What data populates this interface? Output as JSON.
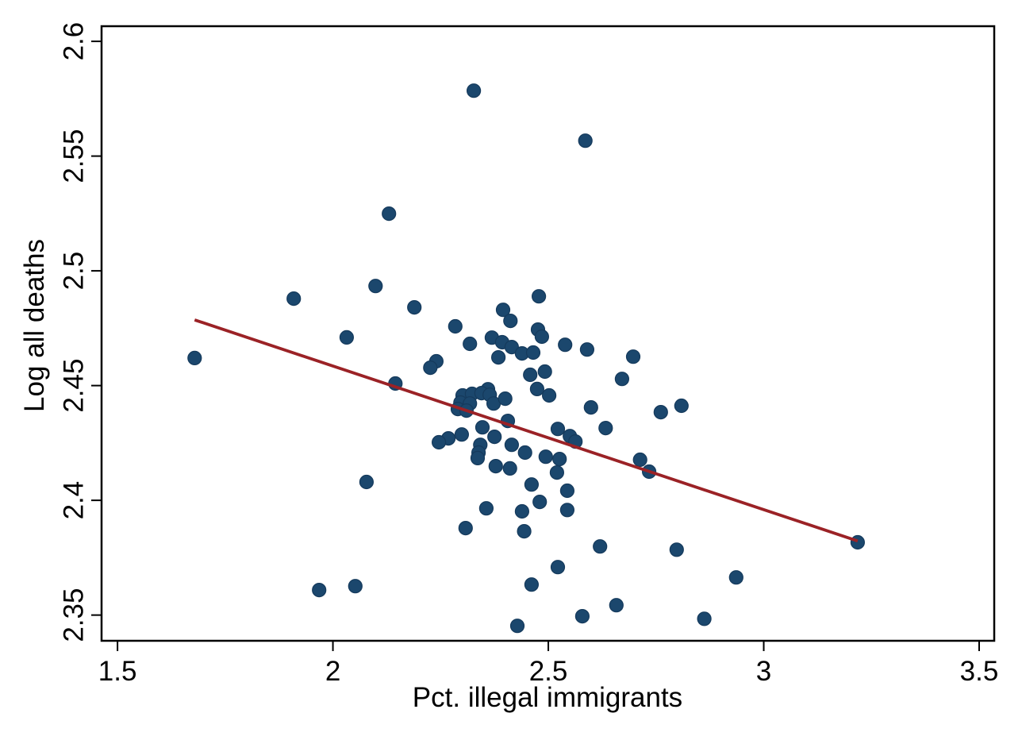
{
  "figure": {
    "background": "#FFFFFF"
  },
  "style": {
    "marker_color": "#1B476D",
    "marker_edge_color": "#153A5C",
    "fit_line_color": "#9B2226",
    "axis_color": "#000000",
    "marker_radius": 8.5,
    "fit_line_width": 3.8,
    "font_size": 35
  },
  "chart_data": {
    "type": "scatter",
    "title": "",
    "xlabel": "Pct. illegal immigrants",
    "ylabel": "Log all deaths",
    "xlim": [
      1.463,
      3.535
    ],
    "ylim": [
      2.3388,
      2.6066
    ],
    "grid": false,
    "legend_position": "none",
    "xticks": {
      "values": [
        1.5,
        2,
        2.5,
        3,
        3.5
      ],
      "labels": [
        "1.5",
        "2",
        "2.5",
        "3",
        "3.5"
      ]
    },
    "yticks": {
      "values": [
        2.35,
        2.4,
        2.45,
        2.5,
        2.55,
        2.6
      ],
      "labels": [
        "2.35",
        "2.4",
        "2.45",
        "2.5",
        "2.55",
        "2.6"
      ]
    },
    "series": [
      {
        "name": "observations",
        "type": "scatter",
        "color": "#1B476D",
        "points": [
          [
            2.327,
            2.5785
          ],
          [
            2.586,
            2.5567
          ],
          [
            2.13,
            2.5249
          ],
          [
            2.099,
            2.4934
          ],
          [
            1.909,
            2.4879
          ],
          [
            2.189,
            2.4841
          ],
          [
            2.478,
            2.4889
          ],
          [
            2.395,
            2.483
          ],
          [
            2.032,
            2.471
          ],
          [
            2.284,
            2.4758
          ],
          [
            2.412,
            2.4782
          ],
          [
            2.476,
            2.4744
          ],
          [
            2.485,
            2.4713
          ],
          [
            2.318,
            2.4682
          ],
          [
            2.369,
            2.4709
          ],
          [
            2.393,
            2.4689
          ],
          [
            2.415,
            2.4668
          ],
          [
            2.439,
            2.464
          ],
          [
            2.465,
            2.4644
          ],
          [
            2.384,
            2.4623
          ],
          [
            2.539,
            2.4678
          ],
          [
            2.59,
            2.4657
          ],
          [
            1.679,
            2.462
          ],
          [
            2.24,
            2.4606
          ],
          [
            2.226,
            2.4578
          ],
          [
            2.145,
            2.4509
          ],
          [
            2.697,
            2.4626
          ],
          [
            2.671,
            2.4529
          ],
          [
            2.458,
            2.4547
          ],
          [
            2.492,
            2.4561
          ],
          [
            2.474,
            2.4485
          ],
          [
            2.502,
            2.4457
          ],
          [
            2.36,
            2.4484
          ],
          [
            2.301,
            2.4457
          ],
          [
            2.323,
            2.4464
          ],
          [
            2.345,
            2.4467
          ],
          [
            2.364,
            2.446
          ],
          [
            2.296,
            2.4426
          ],
          [
            2.318,
            2.4422
          ],
          [
            2.29,
            2.4398
          ],
          [
            2.31,
            2.4391
          ],
          [
            2.373,
            2.4422
          ],
          [
            2.4,
            2.4443
          ],
          [
            2.599,
            2.4405
          ],
          [
            2.633,
            2.4315
          ],
          [
            2.761,
            2.4384
          ],
          [
            2.809,
            2.4412
          ],
          [
            2.406,
            2.4346
          ],
          [
            2.522,
            2.4311
          ],
          [
            2.55,
            2.428
          ],
          [
            2.563,
            2.4256
          ],
          [
            2.347,
            2.4318
          ],
          [
            2.375,
            2.4277
          ],
          [
            2.342,
            2.4242
          ],
          [
            2.268,
            2.427
          ],
          [
            2.246,
            2.4253
          ],
          [
            2.299,
            2.4287
          ],
          [
            2.338,
            2.4208
          ],
          [
            2.336,
            2.4184
          ],
          [
            2.415,
            2.4242
          ],
          [
            2.446,
            2.4208
          ],
          [
            2.494,
            2.419
          ],
          [
            2.526,
            2.418
          ],
          [
            2.52,
            2.4121
          ],
          [
            2.713,
            2.4177
          ],
          [
            2.734,
            2.4125
          ],
          [
            2.378,
            2.4149
          ],
          [
            2.411,
            2.4139
          ],
          [
            2.078,
            2.408
          ],
          [
            2.461,
            2.4069
          ],
          [
            2.544,
            2.4042
          ],
          [
            2.48,
            2.3993
          ],
          [
            2.356,
            2.3965
          ],
          [
            2.439,
            2.3952
          ],
          [
            2.544,
            2.3958
          ],
          [
            2.308,
            2.3879
          ],
          [
            2.444,
            2.3865
          ],
          [
            2.62,
            2.3799
          ],
          [
            2.798,
            2.3785
          ],
          [
            1.968,
            2.3609
          ],
          [
            2.052,
            2.3626
          ],
          [
            2.522,
            2.3709
          ],
          [
            2.461,
            2.3633
          ],
          [
            2.936,
            2.3664
          ],
          [
            2.658,
            2.3543
          ],
          [
            2.862,
            2.3484
          ],
          [
            2.579,
            2.3495
          ],
          [
            2.428,
            2.3453
          ],
          [
            3.218,
            2.3817
          ]
        ]
      },
      {
        "name": "linear-fit",
        "type": "line",
        "color": "#9B2226",
        "points": [
          [
            1.679,
            2.4786
          ],
          [
            3.218,
            2.3823
          ]
        ]
      }
    ]
  }
}
